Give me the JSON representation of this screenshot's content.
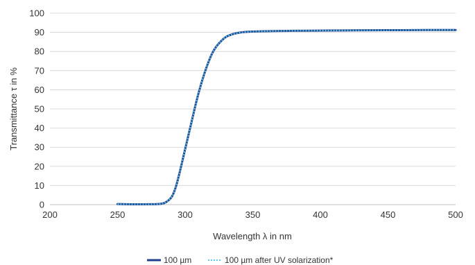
{
  "chart_data": {
    "type": "line",
    "title": "",
    "xlabel": "Wavelength λ in nm",
    "ylabel": "Transmittance τ in %",
    "xlim": [
      200,
      500
    ],
    "ylim": [
      0,
      100
    ],
    "x_ticks": [
      200,
      250,
      300,
      350,
      400,
      450,
      500
    ],
    "y_ticks": [
      0,
      10,
      20,
      30,
      40,
      50,
      60,
      70,
      80,
      90,
      100
    ],
    "x_tick_labels": [
      "200",
      "250",
      "300",
      "350",
      "400",
      "450",
      "500"
    ],
    "y_tick_labels": [
      "0",
      "10",
      "20",
      "30",
      "40",
      "50",
      "60",
      "70",
      "80",
      "90",
      "100"
    ],
    "grid": "horizontal",
    "legend_position": "bottom",
    "series": [
      {
        "name": "100 µm",
        "color": "#1f3f8f",
        "style": "solid",
        "x": [
          250,
          260,
          270,
          280,
          285,
          290,
          293,
          296,
          299,
          302,
          305,
          308,
          311,
          314,
          317,
          320,
          323,
          326,
          330,
          335,
          340,
          345,
          350,
          360,
          370,
          380,
          400,
          420,
          450,
          480,
          500
        ],
        "y": [
          0.3,
          0.2,
          0.2,
          0.3,
          1,
          4,
          9,
          17,
          26,
          35,
          44,
          53,
          61,
          68,
          74,
          79,
          82.5,
          85,
          87.5,
          89,
          89.8,
          90.2,
          90.4,
          90.6,
          90.7,
          90.8,
          90.9,
          91,
          91.1,
          91.2,
          91.2
        ]
      },
      {
        "name": "100 µm after UV solarization*",
        "color": "#5fc8e0",
        "style": "dotted",
        "x": [
          250,
          260,
          270,
          280,
          285,
          290,
          293,
          296,
          299,
          302,
          305,
          308,
          311,
          314,
          317,
          320,
          323,
          326,
          330,
          335,
          340,
          345,
          350,
          360,
          370,
          380,
          400,
          420,
          450,
          480,
          500
        ],
        "y": [
          0.3,
          0.2,
          0.2,
          0.3,
          1,
          4,
          9,
          17,
          26,
          35,
          44,
          53,
          61,
          68,
          74,
          79,
          82.5,
          85,
          87.5,
          89,
          89.8,
          90.2,
          90.4,
          90.6,
          90.7,
          90.8,
          90.9,
          91,
          91.1,
          91.2,
          91.2
        ]
      }
    ]
  }
}
